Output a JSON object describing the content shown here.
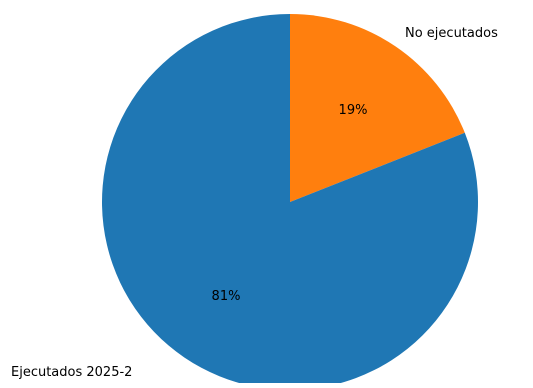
{
  "chart_data": {
    "type": "pie",
    "slices": [
      {
        "label": "No ejecutados",
        "value": 19,
        "pct_label": "19%",
        "color": "#ff7f0e"
      },
      {
        "label": "Ejecutados 2025-2",
        "value": 81,
        "pct_label": "81%",
        "color": "#1f77b4"
      }
    ],
    "start_angle_deg": 90,
    "direction": "clockwise"
  }
}
